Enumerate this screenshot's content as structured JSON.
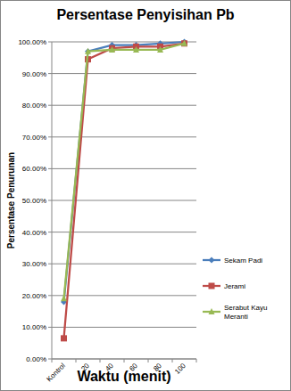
{
  "chart_data": {
    "type": "line",
    "title": "Persentase Penyisihan Pb",
    "x_label": "Waktu (menit)",
    "y_label": "Persentase Penurunan",
    "categories": [
      "Kontrol",
      "20",
      "40",
      "60",
      "80",
      "100"
    ],
    "series": [
      {
        "name": "Sekam Padi",
        "color": "#4a7ebb",
        "marker": "diamond",
        "values": [
          18,
          97,
          99,
          99,
          99.5,
          100
        ]
      },
      {
        "name": "Jerami",
        "color": "#be4b48",
        "marker": "square",
        "values": [
          6.5,
          94.5,
          98,
          98.5,
          98.5,
          99.5
        ]
      },
      {
        "name": "Serabut Kayu Meranti",
        "color": "#98b954",
        "marker": "triangle",
        "values": [
          19,
          97,
          97.5,
          97.5,
          97.5,
          99.5
        ]
      }
    ],
    "ylim": [
      0,
      100
    ],
    "yticks": [
      {
        "value": 0,
        "label": "0.00%"
      },
      {
        "value": 10,
        "label": "10.00%"
      },
      {
        "value": 20,
        "label": "20.00%"
      },
      {
        "value": 30,
        "label": "30.00%"
      },
      {
        "value": 40,
        "label": "40.00%"
      },
      {
        "value": 50,
        "label": "50.00%"
      },
      {
        "value": 60,
        "label": "60.00%"
      },
      {
        "value": 70,
        "label": "70.00%"
      },
      {
        "value": 80,
        "label": "80.00%"
      },
      {
        "value": 90,
        "label": "90.00%"
      },
      {
        "value": 100,
        "label": "100.00%"
      }
    ],
    "grid": true,
    "legend": "right"
  }
}
